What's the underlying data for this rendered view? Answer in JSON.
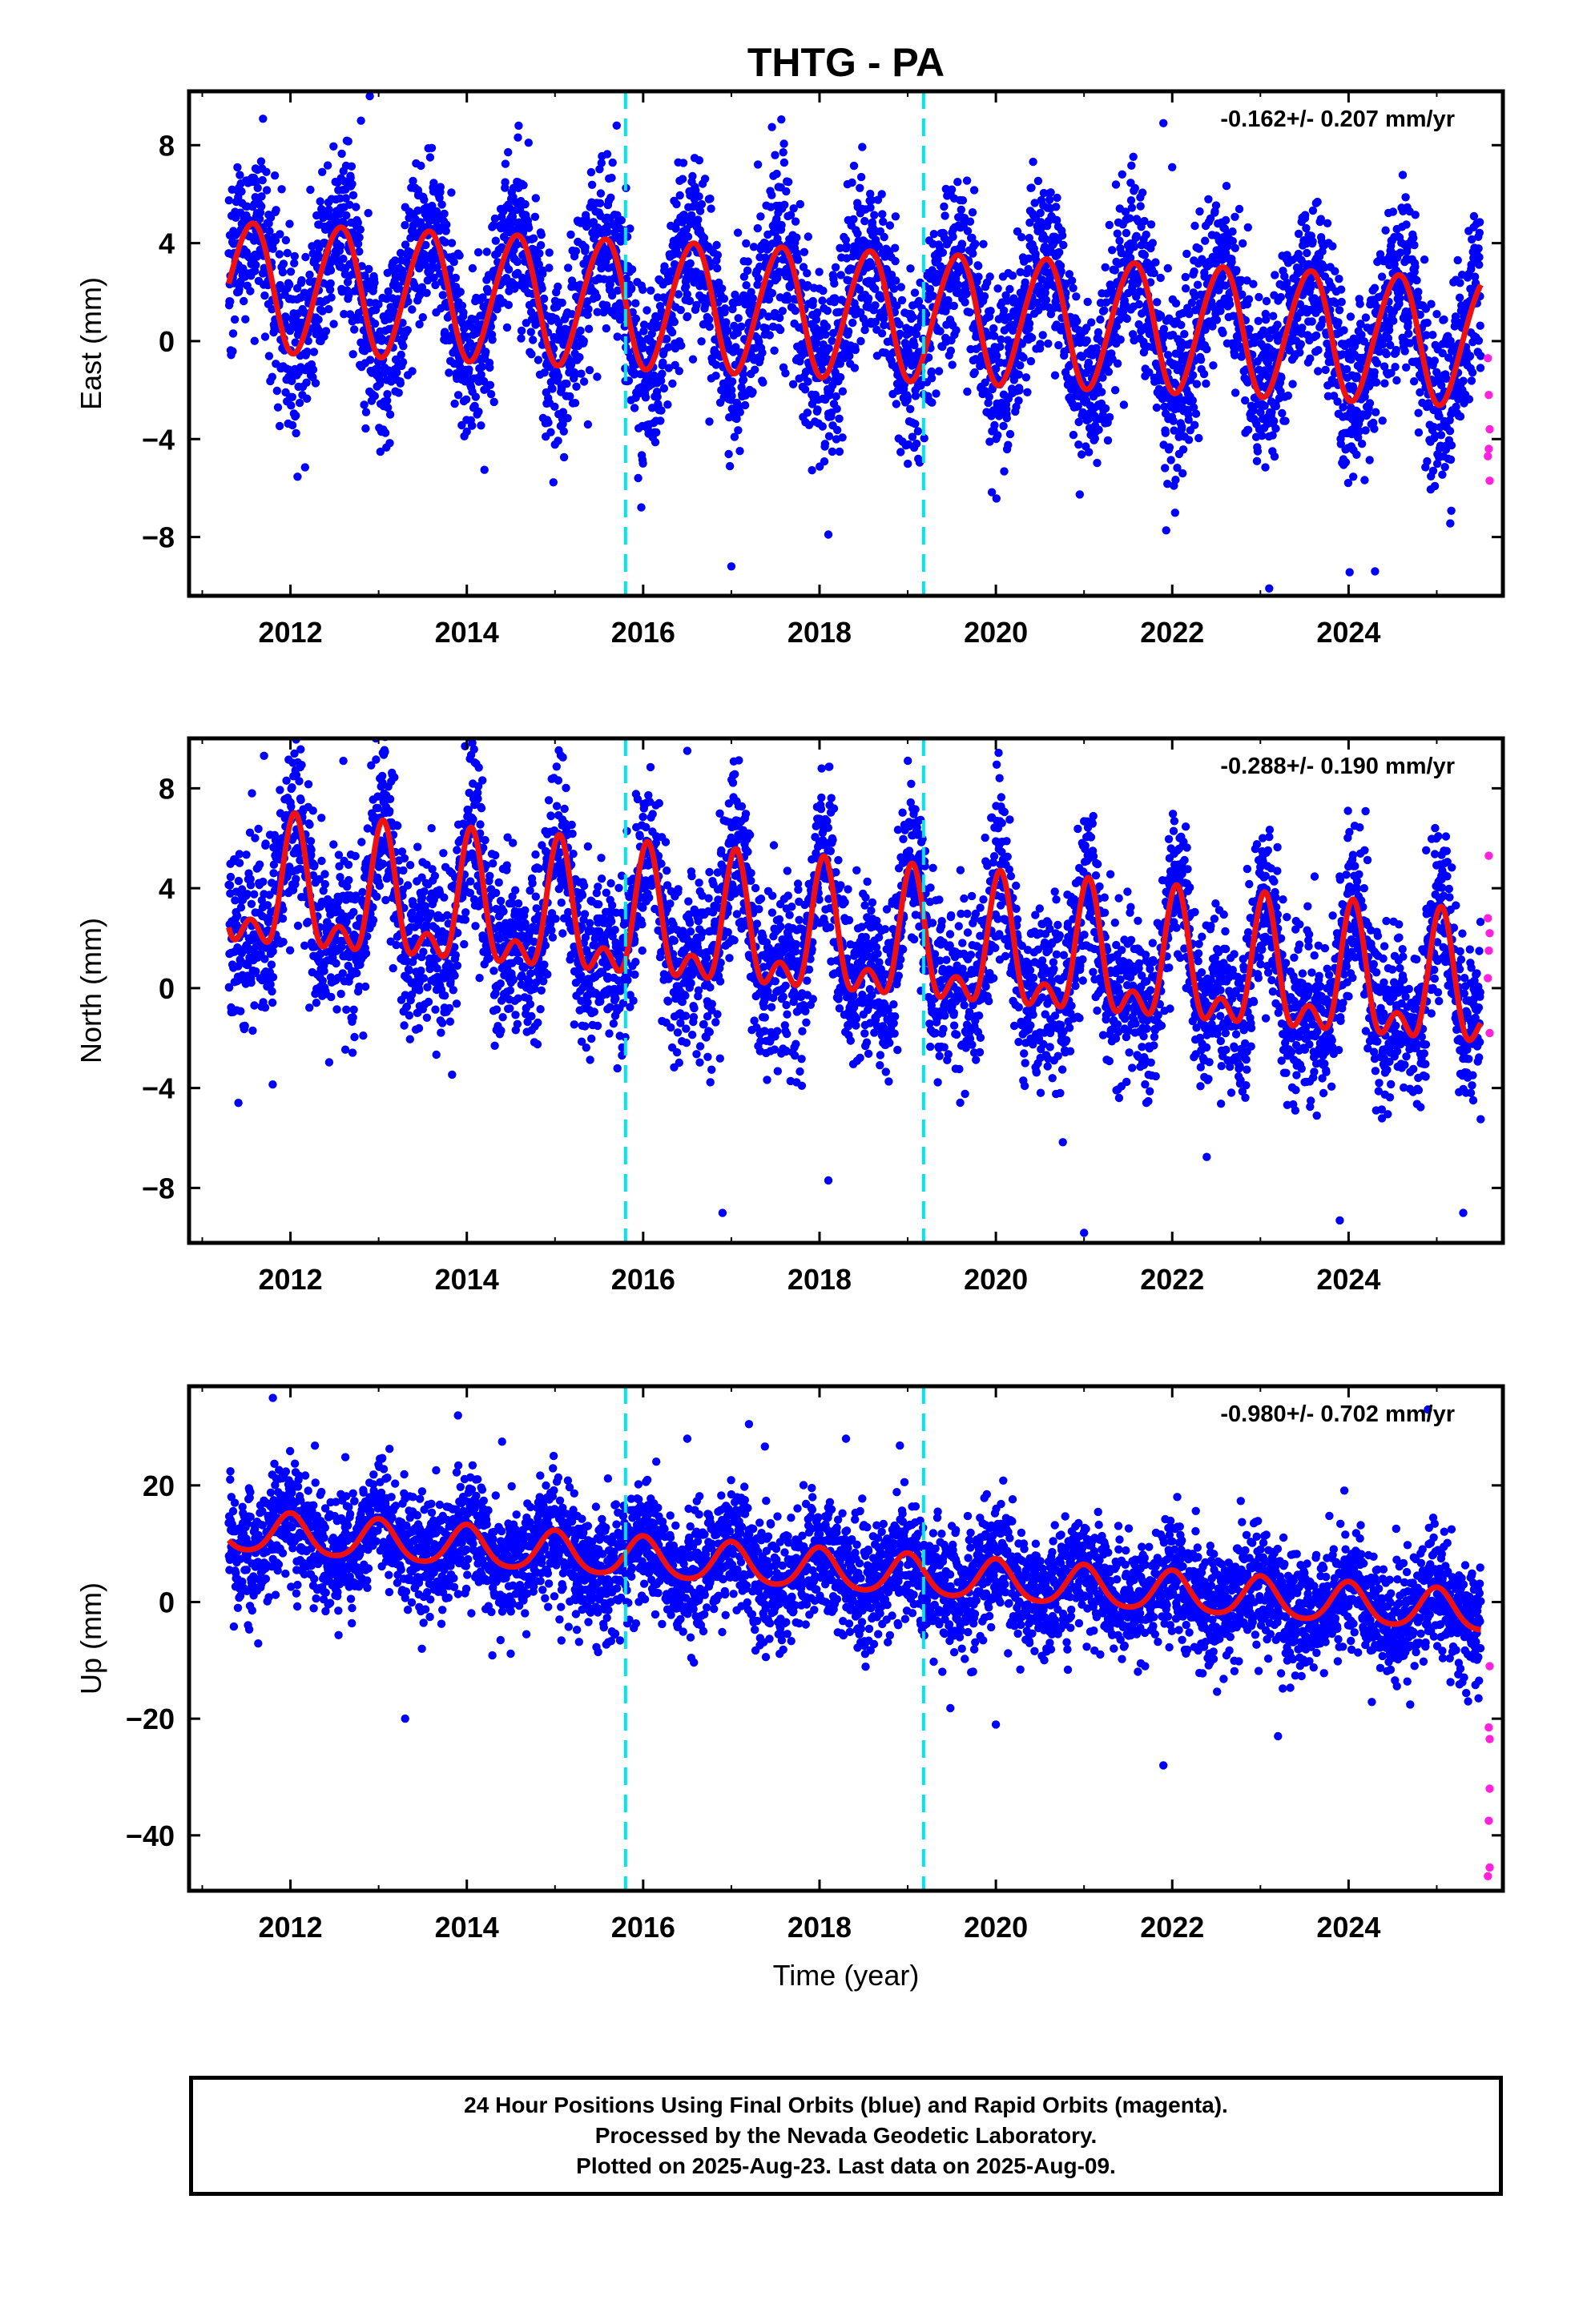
{
  "title": "THTG - PA",
  "footer": {
    "line1": "24 Hour Positions Using Final Orbits (blue) and Rapid Orbits (magenta).",
    "line2": "Processed by the Nevada Geodetic Laboratory.",
    "line3": "Plotted on 2025-Aug-23. Last data on 2025-Aug-09."
  },
  "colors": {
    "final_points": "#0000ff",
    "rapid_points": "#ff22dd",
    "model_curve": "#ee1111",
    "event_lines": "#00e5ee"
  },
  "chart_data": [
    {
      "type": "scatter",
      "component": "East",
      "ylabel": "East (mm)",
      "xlabel": "",
      "rate_label": "-0.162+/- 0.207 mm/yr",
      "xlim": [
        2010.85,
        2025.75
      ],
      "ylim": [
        -10.4,
        10.2
      ],
      "xticks": [
        2012,
        2014,
        2016,
        2018,
        2020,
        2022,
        2024
      ],
      "yticks": [
        -8,
        -4,
        0,
        4,
        8
      ],
      "event_lines_x": [
        2015.8,
        2019.18
      ],
      "model": {
        "offset": 1.2,
        "trend_mm_per_yr": -0.162,
        "annual_amp": 2.6,
        "annual_phase_yr": 0.55,
        "semiannual_amp": 0.2,
        "semiannual_phase_yr": 0.2
      },
      "scatter_sigma": 1.8,
      "final_range": [
        2011.3,
        2025.5
      ],
      "rapid_range": [
        2025.5,
        2025.61
      ],
      "sample_points": [
        [
          2011.9,
          6.2
        ],
        [
          2012.8,
          9.0
        ],
        [
          2012.9,
          10.0
        ],
        [
          2014.7,
          8.1
        ],
        [
          2015.7,
          8.8
        ],
        [
          2017.0,
          -9.2
        ],
        [
          2018.1,
          -7.9
        ],
        [
          2021.9,
          8.9
        ],
        [
          2022.0,
          7.1
        ],
        [
          2023.1,
          -10.1
        ],
        [
          2024.3,
          -9.4
        ]
      ],
      "rapid_sample": [
        [
          2025.58,
          -0.7
        ],
        [
          2025.59,
          -2.2
        ],
        [
          2025.6,
          -3.6
        ],
        [
          2025.58,
          -4.7
        ],
        [
          2025.6,
          -5.7
        ],
        [
          2025.59,
          -4.4
        ]
      ]
    },
    {
      "type": "scatter",
      "component": "North",
      "ylabel": "North (mm)",
      "xlabel": "",
      "rate_label": "-0.288+/- 0.190 mm/yr",
      "xlim": [
        2010.85,
        2025.75
      ],
      "ylim": [
        -10.2,
        10.0
      ],
      "xticks": [
        2012,
        2014,
        2016,
        2018,
        2020,
        2022,
        2024
      ],
      "yticks": [
        -8,
        -4,
        0,
        4,
        8
      ],
      "event_lines_x": [
        2015.8,
        2019.18
      ],
      "model": {
        "offset": 1.8,
        "trend_mm_per_yr": -0.288,
        "annual_amp": 2.2,
        "annual_phase_yr": 0.05,
        "semiannual_amp": 1.3,
        "semiannual_phase_yr": 0.05
      },
      "scatter_sigma": 1.7,
      "final_range": [
        2011.3,
        2025.5
      ],
      "rapid_range": [
        2025.5,
        2025.61
      ],
      "sample_points": [
        [
          2011.7,
          9.3
        ],
        [
          2012.6,
          9.1
        ],
        [
          2016.5,
          9.5
        ],
        [
          2016.9,
          -9.0
        ],
        [
          2018.1,
          -7.7
        ],
        [
          2021.0,
          -9.8
        ],
        [
          2023.9,
          -9.3
        ],
        [
          2025.3,
          -9.0
        ]
      ],
      "rapid_sample": [
        [
          2025.59,
          5.3
        ],
        [
          2025.58,
          2.8
        ],
        [
          2025.6,
          2.2
        ],
        [
          2025.59,
          1.5
        ],
        [
          2025.58,
          0.4
        ],
        [
          2025.6,
          -1.8
        ]
      ]
    },
    {
      "type": "scatter",
      "component": "Up",
      "ylabel": "Up (mm)",
      "xlabel": "Time (year)",
      "rate_label": "-0.980+/- 0.702 mm/yr",
      "xlim": [
        2010.85,
        2025.75
      ],
      "ylim": [
        -49.5,
        37.0
      ],
      "xticks": [
        2012,
        2014,
        2016,
        2018,
        2020,
        2022,
        2024
      ],
      "yticks": [
        -40,
        -20,
        0,
        20
      ],
      "event_lines_x": [
        2015.8,
        2019.18
      ],
      "model": {
        "offset": 5.5,
        "trend_mm_per_yr": -0.98,
        "annual_amp": 3.4,
        "annual_phase_yr": 0.0,
        "semiannual_amp": 0.5,
        "semiannual_phase_yr": 0.0
      },
      "scatter_sigma": 5.2,
      "final_range": [
        2011.3,
        2025.5
      ],
      "rapid_range": [
        2025.5,
        2025.61
      ],
      "sample_points": [
        [
          2011.8,
          35.0
        ],
        [
          2013.3,
          -20.0
        ],
        [
          2013.9,
          32.0
        ],
        [
          2014.4,
          27.5
        ],
        [
          2016.5,
          28.0
        ],
        [
          2017.2,
          30.5
        ],
        [
          2018.3,
          28.0
        ],
        [
          2020.0,
          -21.0
        ],
        [
          2021.9,
          -28.0
        ],
        [
          2023.2,
          -23.0
        ],
        [
          2024.9,
          33.0
        ]
      ],
      "rapid_sample": [
        [
          2025.6,
          -11.0
        ],
        [
          2025.59,
          -21.5
        ],
        [
          2025.6,
          -23.5
        ],
        [
          2025.6,
          -32.0
        ],
        [
          2025.59,
          -37.5
        ],
        [
          2025.6,
          -45.5
        ],
        [
          2025.58,
          -47.0
        ]
      ]
    }
  ]
}
